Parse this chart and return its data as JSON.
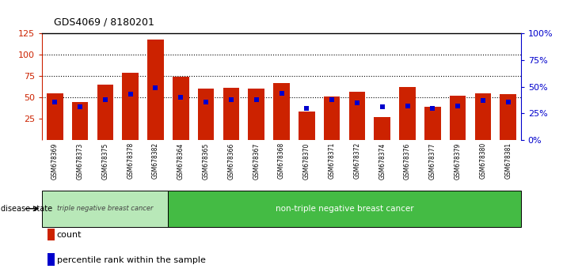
{
  "title": "GDS4069 / 8180201",
  "samples": [
    "GSM678369",
    "GSM678373",
    "GSM678375",
    "GSM678378",
    "GSM678382",
    "GSM678364",
    "GSM678365",
    "GSM678366",
    "GSM678367",
    "GSM678368",
    "GSM678370",
    "GSM678371",
    "GSM678372",
    "GSM678374",
    "GSM678376",
    "GSM678377",
    "GSM678379",
    "GSM678380",
    "GSM678381"
  ],
  "counts": [
    55,
    45,
    65,
    79,
    118,
    74,
    60,
    61,
    60,
    67,
    33,
    51,
    57,
    27,
    62,
    39,
    52,
    55,
    54
  ],
  "percentiles": [
    36,
    31,
    38,
    43,
    49,
    40,
    36,
    38,
    38,
    44,
    30,
    38,
    35,
    31,
    32,
    30,
    32,
    37,
    36
  ],
  "group1_count": 5,
  "group1_label": "triple negative breast cancer",
  "group2_label": "non-triple negative breast cancer",
  "bar_color": "#cc2200",
  "dot_color": "#0000cc",
  "left_ylim": [
    0,
    125
  ],
  "right_ylim": [
    0,
    100
  ],
  "left_yticks": [
    25,
    50,
    75,
    100,
    125
  ],
  "right_yticks": [
    0,
    25,
    50,
    75,
    100
  ],
  "right_yticklabels": [
    "0%",
    "25%",
    "50%",
    "75%",
    "100%"
  ],
  "bg_tick": "#d3d3d3",
  "bg_group1": "#b8e8b8",
  "bg_group2": "#44bb44",
  "disease_state_label": "disease state",
  "legend_count": "count",
  "legend_percentile": "percentile rank within the sample",
  "grid_values": [
    50,
    75,
    100
  ]
}
